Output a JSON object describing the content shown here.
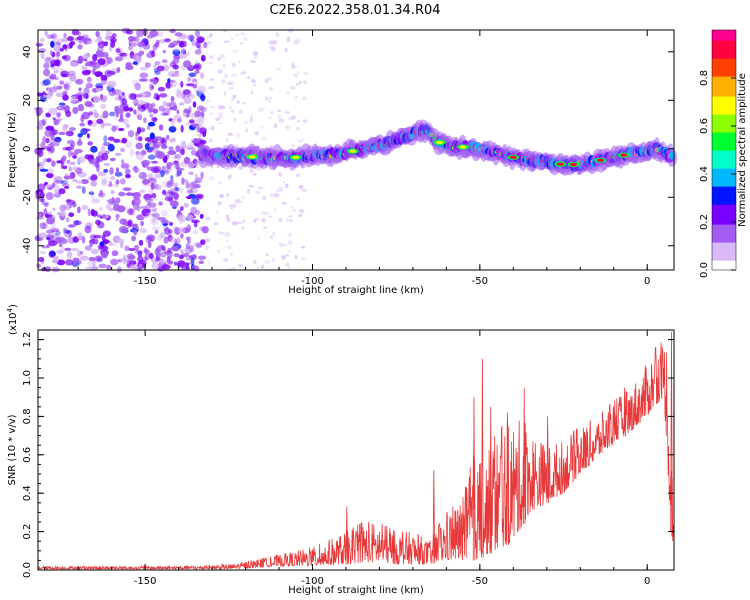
{
  "title": "C2E6.2022.358.01.34.R04",
  "chart_data": [
    {
      "type": "heatmap",
      "xlabel": "Height of straight line (km)",
      "ylabel": "Frequency (Hz)",
      "xlim": [
        -182,
        8
      ],
      "ylim": [
        -50,
        49
      ],
      "xticks": [
        -150,
        -100,
        -50,
        0
      ],
      "yticks": [
        40,
        20,
        0,
        -20,
        -40
      ],
      "grid": false,
      "ridge": {
        "x": [
          -133,
          -125,
          -115,
          -105,
          -95,
          -88,
          -80,
          -75,
          -70,
          -66,
          -63,
          -58,
          -52,
          -45,
          -40,
          -35,
          -30,
          -25,
          -20,
          -15,
          -10,
          -5,
          0,
          3,
          7
        ],
        "y": [
          -2.5,
          -3,
          -3.5,
          -3.5,
          -2.5,
          -1,
          1.5,
          3.5,
          6,
          8,
          3,
          1,
          0.5,
          -1.5,
          -3.5,
          -4.5,
          -5.5,
          -6.5,
          -6.5,
          -5,
          -3.5,
          -2,
          -1,
          0,
          -3
        ]
      },
      "colorbar": {
        "label": "Normalized spectral amplitude",
        "range": [
          0,
          1
        ],
        "ticks": [
          0.0,
          0.2,
          0.4,
          0.6,
          0.8
        ],
        "colormap": [
          "#ffffff",
          "#d8b8f6",
          "#a35cf2",
          "#7a00ff",
          "#0015ff",
          "#00b8ff",
          "#00ffc8",
          "#00ff30",
          "#8cff00",
          "#ffff00",
          "#ffb000",
          "#ff4000",
          "#ff0040",
          "#ff0090"
        ]
      }
    },
    {
      "type": "line",
      "xlabel": "Height of straight line (km)",
      "ylabel": "SNR (10 * v/v)",
      "yscale_note": "(x10",
      "yscale_exp": "4",
      "yscale_close": ")",
      "xlim": [
        -182,
        8
      ],
      "ylim": [
        0,
        1.25
      ],
      "xticks": [
        -150,
        -100,
        -50,
        0
      ],
      "yticks": [
        0.0,
        0.2,
        0.4,
        0.6,
        0.8,
        1.0,
        1.2
      ],
      "color": "#e8393a",
      "grid": false,
      "envelope": {
        "x": [
          -182,
          -160,
          -140,
          -125,
          -118,
          -110,
          -100,
          -90,
          -85,
          -80,
          -75,
          -70,
          -65,
          -60,
          -55,
          -52,
          -50,
          -48,
          -45,
          -40,
          -35,
          -30,
          -25,
          -20,
          -15,
          -10,
          -5,
          0,
          2,
          5,
          6,
          7,
          8
        ],
        "upper": [
          0.02,
          0.02,
          0.02,
          0.03,
          0.05,
          0.08,
          0.12,
          0.2,
          0.25,
          0.25,
          0.2,
          0.2,
          0.15,
          0.3,
          0.38,
          0.6,
          0.55,
          0.6,
          0.72,
          0.8,
          0.75,
          0.65,
          0.68,
          0.75,
          0.8,
          0.88,
          0.95,
          1.08,
          1.15,
          1.2,
          1.25,
          0.8,
          0.4
        ],
        "lower": [
          0.005,
          0.005,
          0.005,
          0.005,
          0.01,
          0.02,
          0.02,
          0.03,
          0.04,
          0.04,
          0.03,
          0.03,
          0.03,
          0.05,
          0.05,
          0.05,
          0.06,
          0.08,
          0.1,
          0.15,
          0.3,
          0.35,
          0.4,
          0.5,
          0.58,
          0.66,
          0.72,
          0.8,
          0.85,
          0.9,
          0.6,
          0.2,
          0.1
        ]
      },
      "spikes": [
        {
          "x": -49.5,
          "y": 1.1
        },
        {
          "x": -52,
          "y": 0.9
        },
        {
          "x": -47,
          "y": 0.85
        },
        {
          "x": -42,
          "y": 0.82
        },
        {
          "x": -37,
          "y": 0.95
        },
        {
          "x": -30,
          "y": 0.8
        },
        {
          "x": -64,
          "y": 0.52
        },
        {
          "x": -90,
          "y": 0.33
        },
        {
          "x": -7,
          "y": 0.95
        },
        {
          "x": 7,
          "y": 1.24
        }
      ]
    }
  ]
}
